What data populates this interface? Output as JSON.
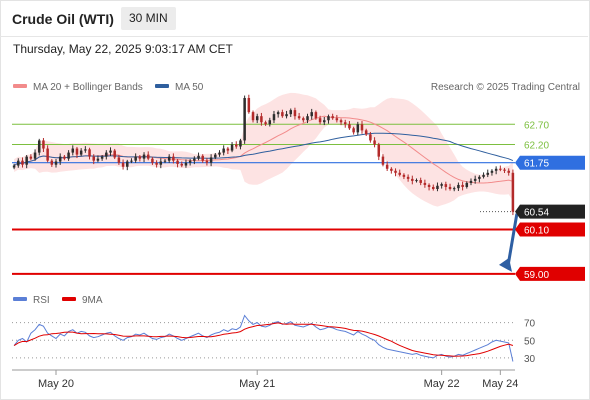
{
  "header": {
    "instrument": "Crude Oil (WTI)",
    "timeframe": "30 MIN",
    "datetime": "Thursday, May 22, 2025 9:03:17 AM CET"
  },
  "legend": {
    "ma20_label": "MA 20 + Bollinger Bands",
    "ma50_label": "MA 50",
    "copyright": "Research © 2025 Trading Central",
    "ma20_color": "#f28b8b",
    "ma50_color": "#2f5f9e"
  },
  "rsi_legend": {
    "rsi_label": "RSI",
    "ma9_label": "9MA",
    "rsi_color": "#5b7fd6",
    "ma9_color": "#e00000"
  },
  "chart_data": {
    "type": "candlestick",
    "ylim": [
      58.85,
      63.3
    ],
    "x_labels": [
      "May 20",
      "May 21",
      "May 22",
      "May 24"
    ],
    "x_label_index": [
      10,
      58,
      102,
      116
    ],
    "n_candles": 120,
    "price_levels": [
      {
        "value": 62.7,
        "label": "62.70",
        "style": "line",
        "color": "#7cbf3f"
      },
      {
        "value": 62.2,
        "label": "62.20",
        "style": "line",
        "color": "#7cbf3f"
      },
      {
        "value": 61.75,
        "label": "61.75",
        "style": "tag",
        "color": "#2f6fe0"
      },
      {
        "value": 60.54,
        "label": "60.54",
        "style": "tag",
        "color": "#222222"
      },
      {
        "value": 60.1,
        "label": "60.10",
        "style": "tag",
        "color": "#e00000"
      },
      {
        "value": 59.0,
        "label": "59.00",
        "style": "tag",
        "color": "#e00000"
      }
    ],
    "current_price": 60.54,
    "candle_up_color": "#2d2d2d",
    "candle_down_color": "#b32a2a",
    "bollinger_fill": "#fde3e3",
    "arrow_color": "#2e5fa3",
    "arrow_target": 59.0,
    "rsi_ylim": [
      22,
      82
    ],
    "rsi_levels": [
      70,
      50,
      30
    ],
    "closes": [
      61.68,
      61.8,
      61.7,
      61.9,
      61.85,
      62.0,
      62.3,
      62.1,
      61.8,
      61.7,
      61.78,
      61.9,
      61.85,
      62.0,
      62.1,
      61.95,
      62.05,
      62.08,
      61.9,
      61.8,
      61.85,
      61.9,
      62.0,
      62.05,
      61.88,
      61.75,
      61.65,
      61.78,
      61.8,
      61.9,
      61.85,
      61.95,
      61.85,
      61.75,
      61.7,
      61.78,
      61.8,
      61.9,
      61.8,
      61.72,
      61.68,
      61.75,
      61.8,
      61.85,
      61.92,
      61.8,
      61.75,
      61.88,
      61.95,
      62.0,
      62.1,
      62.05,
      62.2,
      62.15,
      62.3,
      63.35,
      63.0,
      62.8,
      62.9,
      62.75,
      62.7,
      62.8,
      62.95,
      63.0,
      62.9,
      62.95,
      63.05,
      62.9,
      62.85,
      62.8,
      62.9,
      63.0,
      62.85,
      62.75,
      62.8,
      62.9,
      62.85,
      62.8,
      62.75,
      62.7,
      62.6,
      62.5,
      62.7,
      62.55,
      62.45,
      62.3,
      62.2,
      61.9,
      61.7,
      61.6,
      61.55,
      61.5,
      61.45,
      61.4,
      61.35,
      61.3,
      61.32,
      61.25,
      61.2,
      61.15,
      61.1,
      61.18,
      61.22,
      61.15,
      61.1,
      61.12,
      61.2,
      61.15,
      61.25,
      61.3,
      61.35,
      61.4,
      61.45,
      61.5,
      61.55,
      61.6,
      61.58,
      61.55,
      61.5,
      60.54
    ],
    "rsi": [
      44,
      50,
      52,
      48,
      58,
      62,
      68,
      66,
      58,
      55,
      52,
      57,
      55,
      60,
      62,
      58,
      60,
      59,
      55,
      53,
      54,
      56,
      58,
      59,
      55,
      52,
      50,
      53,
      54,
      57,
      56,
      58,
      55,
      52,
      51,
      53,
      54,
      57,
      55,
      52,
      50,
      52,
      54,
      56,
      58,
      55,
      53,
      56,
      58,
      59,
      62,
      60,
      63,
      62,
      65,
      78,
      72,
      68,
      70,
      66,
      65,
      67,
      70,
      71,
      68,
      69,
      71,
      67,
      66,
      65,
      67,
      69,
      65,
      62,
      63,
      65,
      64,
      62,
      61,
      60,
      58,
      56,
      60,
      57,
      55,
      52,
      50,
      45,
      42,
      40,
      39,
      38,
      37,
      36,
      35,
      34,
      35,
      33,
      32,
      31,
      30,
      33,
      34,
      32,
      31,
      32,
      34,
      33,
      35,
      37,
      39,
      41,
      43,
      45,
      48,
      50,
      49,
      48,
      47,
      26
    ]
  }
}
